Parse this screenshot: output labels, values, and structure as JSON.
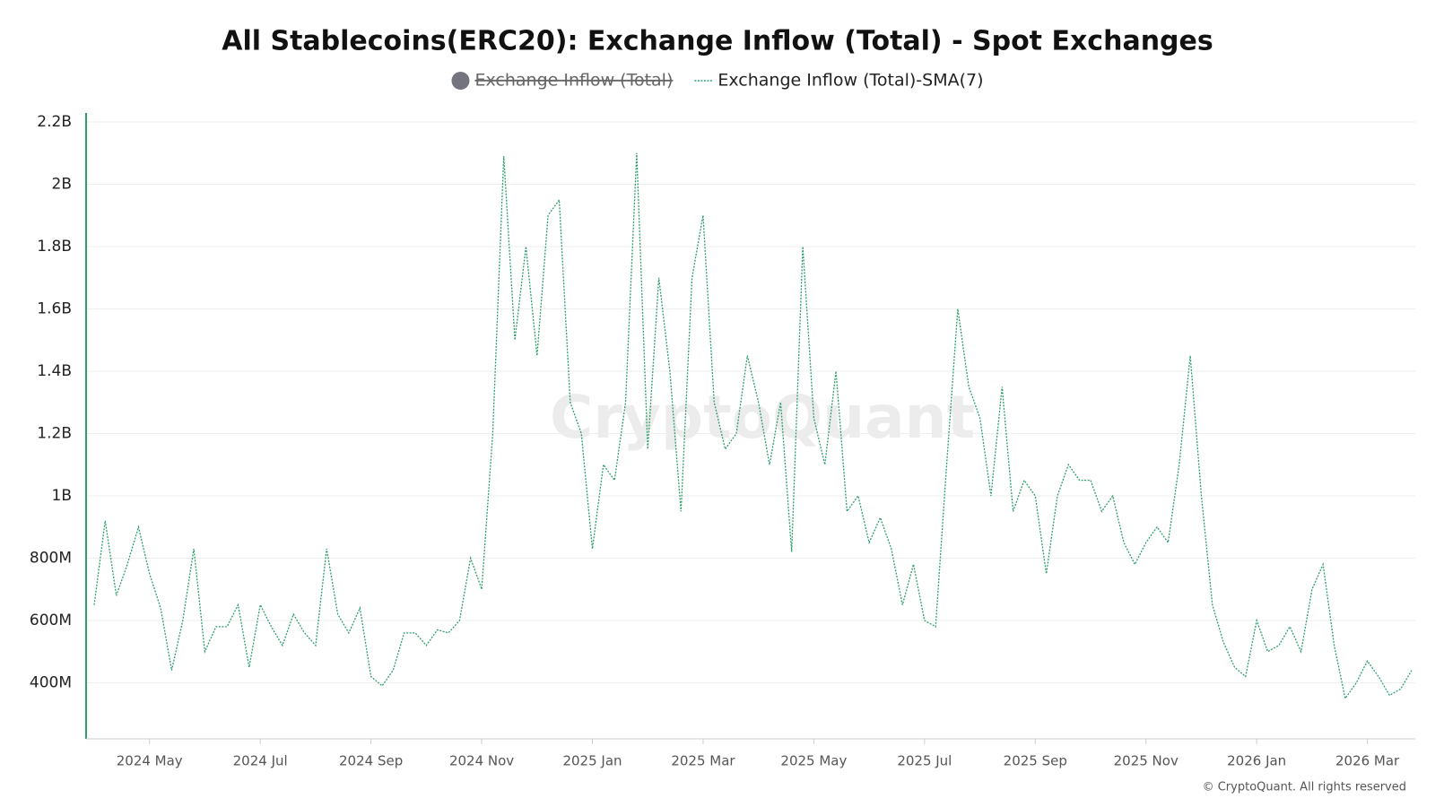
{
  "chart_data": {
    "type": "line",
    "title": "All Stablecoins(ERC20): Exchange Inflow (Total) - Spot Exchanges",
    "watermark": "CryptoQuant",
    "credit": "© CryptoQuant. All rights reserved",
    "grid": true,
    "ylim": [
      220000000.0,
      2200000000.0
    ],
    "yticks": [
      {
        "value": 400000000.0,
        "label": "400M"
      },
      {
        "value": 600000000.0,
        "label": "600M"
      },
      {
        "value": 800000000.0,
        "label": "800M"
      },
      {
        "value": 1000000000.0,
        "label": "1B"
      },
      {
        "value": 1200000000.0,
        "label": "1.2B"
      },
      {
        "value": 1400000000.0,
        "label": "1.4B"
      },
      {
        "value": 1600000000.0,
        "label": "1.6B"
      },
      {
        "value": 1800000000.0,
        "label": "1.8B"
      },
      {
        "value": 2000000000.0,
        "label": "2B"
      },
      {
        "value": 2200000000.0,
        "label": "2.2B"
      }
    ],
    "categories": [
      null,
      null,
      null,
      null,
      null,
      "2024 May",
      null,
      null,
      null,
      null,
      null,
      null,
      null,
      null,
      null,
      "2024 Jul",
      null,
      null,
      null,
      null,
      null,
      null,
      null,
      null,
      null,
      "2024 Sep",
      null,
      null,
      null,
      null,
      null,
      null,
      null,
      null,
      null,
      "2024 Nov",
      null,
      null,
      null,
      null,
      null,
      null,
      null,
      null,
      null,
      "2025 Jan",
      null,
      null,
      null,
      null,
      null,
      null,
      null,
      null,
      null,
      "2025 Mar",
      null,
      null,
      null,
      null,
      null,
      null,
      null,
      null,
      null,
      "2025 May",
      null,
      null,
      null,
      null,
      null,
      null,
      null,
      null,
      null,
      "2025 Jul",
      null,
      null,
      null,
      null,
      null,
      null,
      null,
      null,
      null,
      "2025 Sep",
      null,
      null,
      null,
      null,
      null,
      null,
      null,
      null,
      null,
      "2025 Nov",
      null,
      null,
      null,
      null,
      null,
      null,
      null,
      null,
      null,
      "2026 Jan",
      null,
      null,
      null,
      null,
      null,
      null,
      null,
      null,
      null,
      "2026 Mar",
      null,
      null,
      null,
      null
    ],
    "series": [
      {
        "name": "Exchange Inflow (Total)",
        "color": "#74747f",
        "hidden": true
      },
      {
        "name": "Exchange Inflow (Total)-SMA(7)",
        "color": "#2e9e6b",
        "values": [
          650000000.0,
          920000000.0,
          680000000.0,
          780000000.0,
          900000000.0,
          750000000.0,
          640000000.0,
          440000000.0,
          600000000.0,
          830000000.0,
          500000000.0,
          580000000.0,
          580000000.0,
          650000000.0,
          450000000.0,
          650000000.0,
          580000000.0,
          520000000.0,
          620000000.0,
          560000000.0,
          520000000.0,
          830000000.0,
          620000000.0,
          560000000.0,
          640000000.0,
          420000000.0,
          390000000.0,
          440000000.0,
          560000000.0,
          560000000.0,
          520000000.0,
          570000000.0,
          560000000.0,
          600000000.0,
          800000000.0,
          700000000.0,
          1200000000.0,
          2090000000.0,
          1500000000.0,
          1800000000.0,
          1450000000.0,
          1900000000.0,
          1950000000.0,
          1300000000.0,
          1200000000.0,
          830000000.0,
          1100000000.0,
          1050000000.0,
          1300000000.0,
          2100000000.0,
          1150000000.0,
          1700000000.0,
          1400000000.0,
          950000000.0,
          1700000000.0,
          1900000000.0,
          1300000000.0,
          1150000000.0,
          1200000000.0,
          1450000000.0,
          1300000000.0,
          1100000000.0,
          1300000000.0,
          820000000.0,
          1800000000.0,
          1250000000.0,
          1100000000.0,
          1400000000.0,
          950000000.0,
          1000000000.0,
          850000000.0,
          930000000.0,
          830000000.0,
          650000000.0,
          780000000.0,
          600000000.0,
          580000000.0,
          1100000000.0,
          1600000000.0,
          1350000000.0,
          1250000000.0,
          1000000000.0,
          1350000000.0,
          950000000.0,
          1050000000.0,
          1000000000.0,
          750000000.0,
          1000000000.0,
          1100000000.0,
          1050000000.0,
          1050000000.0,
          950000000.0,
          1000000000.0,
          850000000.0,
          780000000.0,
          850000000.0,
          900000000.0,
          850000000.0,
          1100000000.0,
          1450000000.0,
          1000000000.0,
          650000000.0,
          530000000.0,
          450000000.0,
          420000000.0,
          600000000.0,
          500000000.0,
          520000000.0,
          580000000.0,
          500000000.0,
          700000000.0,
          780000000.0,
          520000000.0,
          350000000.0,
          400000000.0,
          470000000.0,
          420000000.0,
          360000000.0,
          380000000.0,
          440000000.0
        ]
      }
    ]
  }
}
